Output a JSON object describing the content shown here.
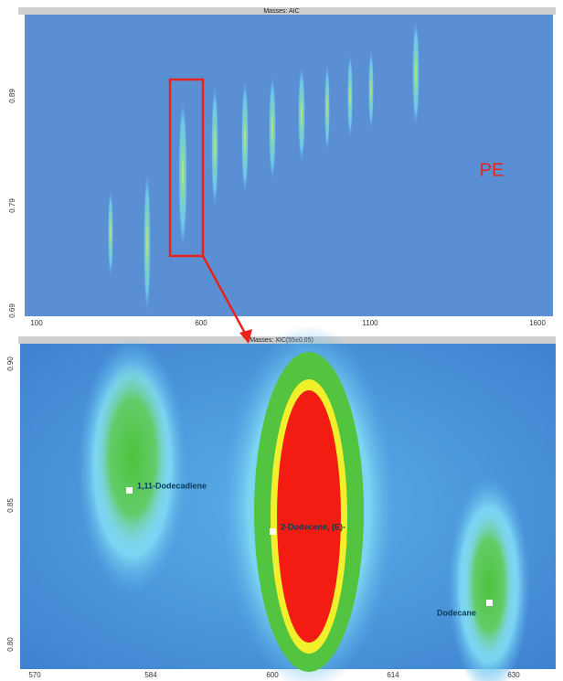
{
  "top_panel": {
    "title": "Masses: AIC",
    "xticks": [
      "100",
      "600",
      "1100",
      "1600"
    ],
    "yticks": [
      "0.89",
      "0.79",
      "0.69"
    ],
    "annotation": "PE"
  },
  "bottom_panel": {
    "title": "Masses: XIC(55±0.05)",
    "xticks": [
      "570",
      "584",
      "600",
      "614",
      "630"
    ],
    "yticks": [
      "0.90",
      "0.85",
      "0.80"
    ],
    "peaks": [
      "1,11-Dodecadiene",
      "2-Dodecene, (E)-",
      "Dodecane"
    ]
  }
}
